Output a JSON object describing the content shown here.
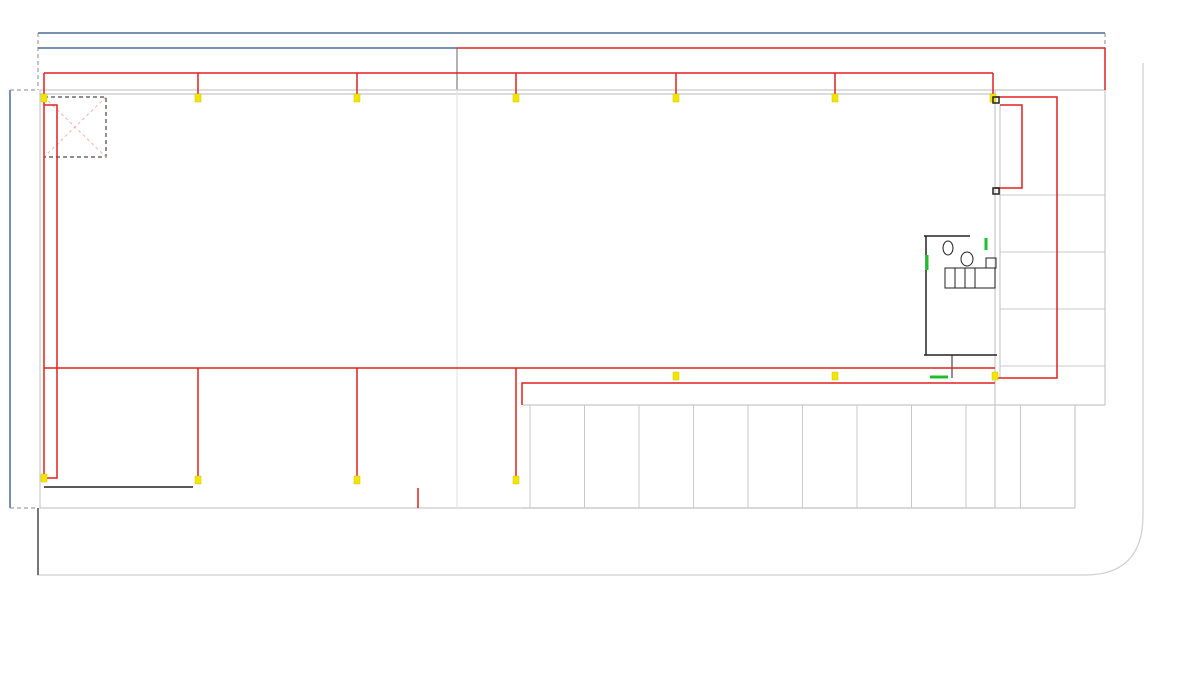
{
  "drawing": {
    "type": "floor-plan",
    "colors": {
      "dimension_blue": "#4a6f96",
      "circuit_red": "#e02020",
      "fixture_yellow": "#f2e600",
      "wall_gray": "#c8c8c8",
      "door_green": "#1fbf2a",
      "wall_black": "#222222"
    },
    "elements": {
      "top_circuit_drops": 6,
      "bottom_circuit_drops": 4,
      "parking_stalls_bottom": 10,
      "parking_stalls_right": 3
    }
  }
}
